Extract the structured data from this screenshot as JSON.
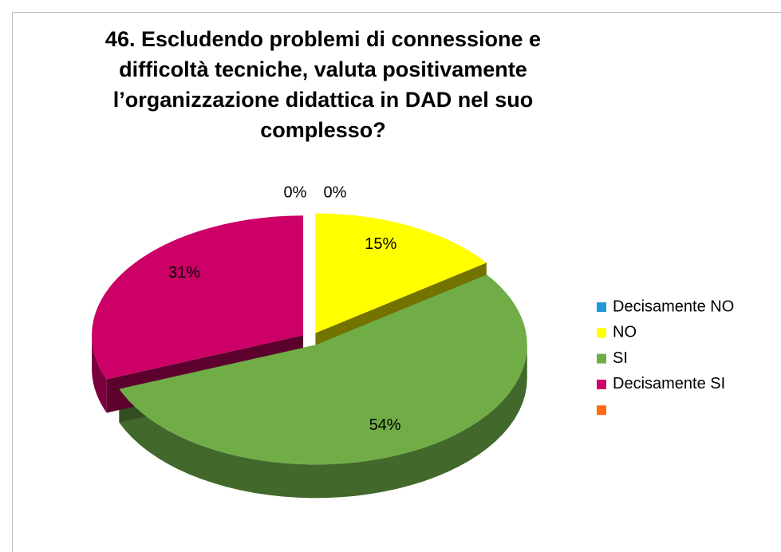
{
  "chart_data": {
    "type": "pie",
    "title": "46. Escludendo problemi di connessione e difficoltà tecniche, valuta positivamente l’organizzazione didattica in DAD nel suo\ncomplesso?",
    "categories": [
      "Decisamente NO",
      "NO",
      "SI",
      "Decisamente SI",
      null
    ],
    "values": [
      0,
      15,
      54,
      31,
      0
    ],
    "value_labels": [
      "0%",
      "15%",
      "54%",
      "31%",
      "0%"
    ],
    "colors": [
      "#1f9ad6",
      "#ffff00",
      "#70ad47",
      "#cc0066",
      "#ff6a13"
    ],
    "legend": "right"
  }
}
